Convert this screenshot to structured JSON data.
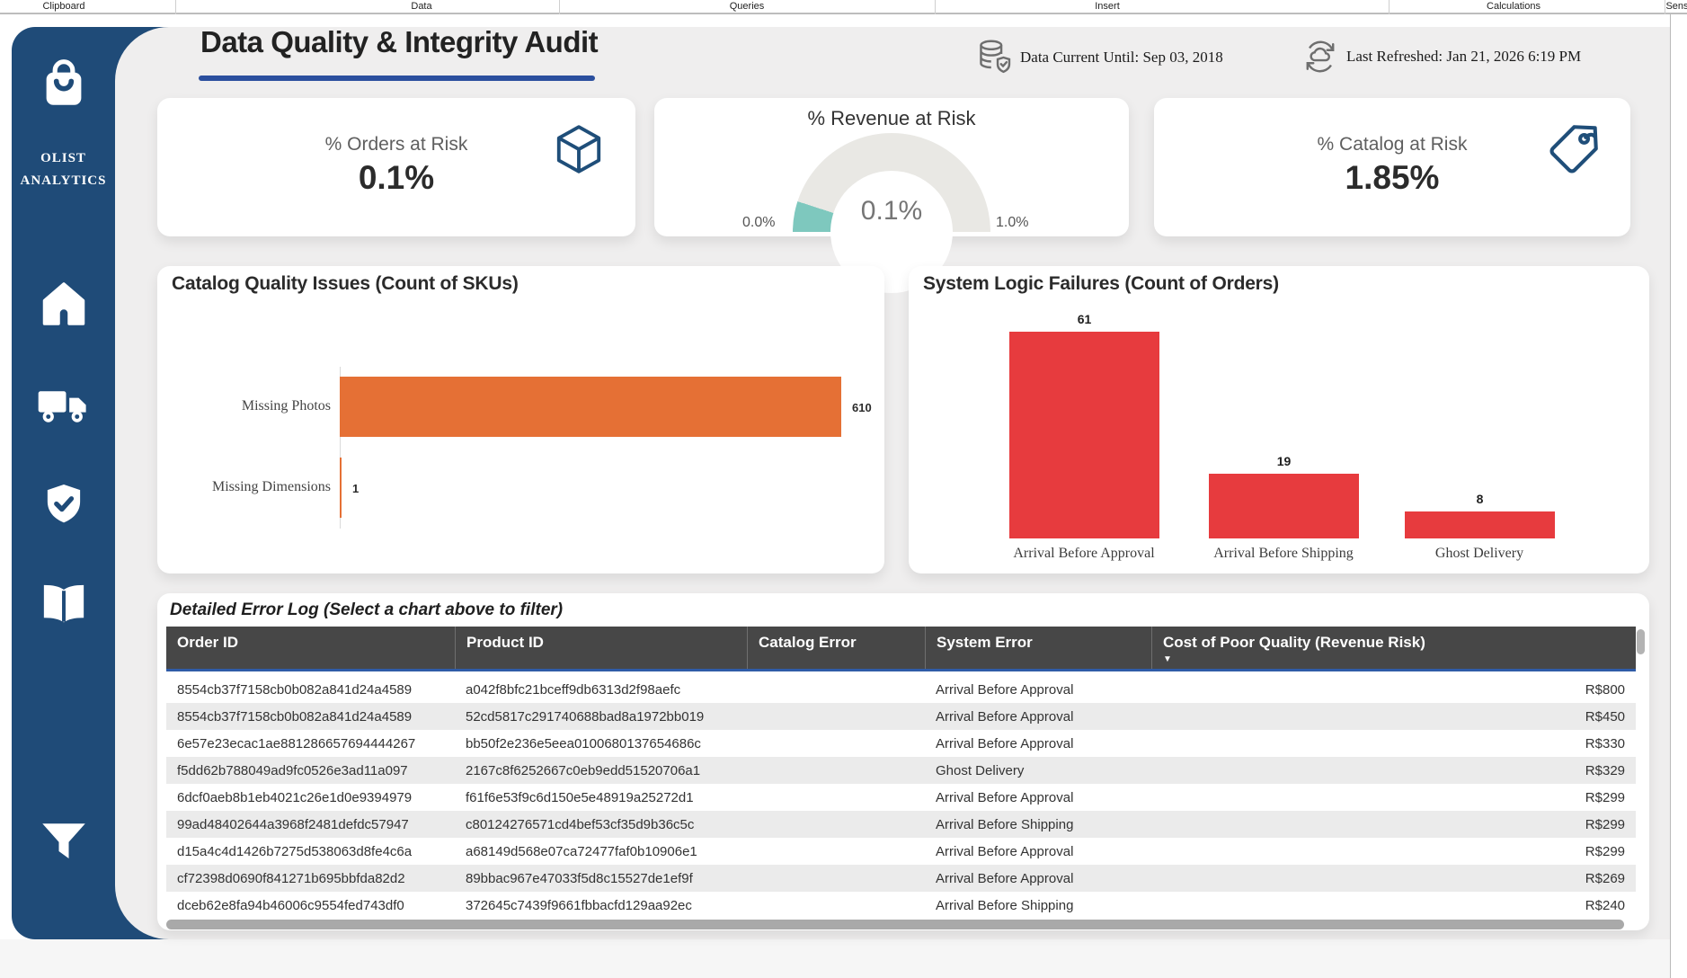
{
  "ribbon": {
    "tabs": [
      {
        "label": "Clipboard"
      },
      {
        "label": "Data"
      },
      {
        "label": "Queries"
      },
      {
        "label": "Insert"
      },
      {
        "label": "Calculations"
      },
      {
        "label": "Sens"
      }
    ]
  },
  "sidebar": {
    "brand_line1": "OLIST",
    "brand_line2": "ANALYTICS",
    "icons": [
      "shopping-bag",
      "home",
      "truck",
      "shield-check",
      "book-open",
      "filter-funnel"
    ]
  },
  "header": {
    "title": "Data Quality & Integrity Audit",
    "data_current": "Data Current Until: Sep 03, 2018",
    "last_refreshed": "Last Refreshed: Jan 21, 2026 6:19 PM"
  },
  "kpis": {
    "orders": {
      "label": "% Orders at Risk",
      "value": "0.1%"
    },
    "catalog": {
      "label": "% Catalog at Risk",
      "value": "1.85%"
    }
  },
  "colors": {
    "navy": "#1F4B78",
    "accent_blue": "#2B4F9E",
    "orange": "#E57035",
    "red": "#E73B3E",
    "teal": "#7EC8BE",
    "gauge_track": "#E9E8E4",
    "table_header": "#474747"
  },
  "chart_data": [
    {
      "type": "gauge",
      "title": "% Revenue at Risk",
      "value": 0.1,
      "min": 0.0,
      "max": 1.0,
      "min_label": "0.0%",
      "value_label": "0.1%",
      "max_label": "1.0%",
      "fill_color": "#7EC8BE",
      "track_color": "#E9E8E4"
    },
    {
      "type": "bar",
      "orientation": "horizontal",
      "title": "Catalog Quality Issues (Count of SKUs)",
      "categories": [
        "Missing Photos",
        "Missing Dimensions"
      ],
      "values": [
        610,
        1
      ],
      "bar_color": "#E57035",
      "xlim": [
        0,
        660
      ],
      "grid": false
    },
    {
      "type": "bar",
      "orientation": "vertical",
      "title": "System Logic Failures (Count of Orders)",
      "categories": [
        "Arrival Before Approval",
        "Arrival Before Shipping",
        "Ghost Delivery"
      ],
      "values": [
        61,
        19,
        8
      ],
      "bar_color": "#E73B3E",
      "ylim": [
        0,
        65
      ],
      "grid": false
    }
  ],
  "table": {
    "title": "Detailed Error Log (Select a chart above to filter)",
    "columns": [
      "Order ID",
      "Product ID",
      "Catalog Error",
      "System Error",
      "Cost of Poor Quality (Revenue Risk)"
    ],
    "sorted_column": "Cost of Poor Quality (Revenue Risk)",
    "sort_direction": "desc",
    "rows": [
      {
        "order_id": "8554cb37f7158cb0b082a841d24a4589",
        "product_id": "a042f8bfc21bceff9db6313d2f98aefc",
        "catalog_error": "",
        "system_error": "Arrival Before Approval",
        "cost": "R$800"
      },
      {
        "order_id": "8554cb37f7158cb0b082a841d24a4589",
        "product_id": "52cd5817c291740688bad8a1972bb019",
        "catalog_error": "",
        "system_error": "Arrival Before Approval",
        "cost": "R$450"
      },
      {
        "order_id": "6e57e23ecac1ae881286657694444267",
        "product_id": "bb50f2e236e5eea0100680137654686c",
        "catalog_error": "",
        "system_error": "Arrival Before Approval",
        "cost": "R$330"
      },
      {
        "order_id": "f5dd62b788049ad9fc0526e3ad11a097",
        "product_id": "2167c8f6252667c0eb9edd51520706a1",
        "catalog_error": "",
        "system_error": "Ghost Delivery",
        "cost": "R$329"
      },
      {
        "order_id": "6dcf0aeb8b1eb4021c26e1d0e9394979",
        "product_id": "f61f6e53f9c6d150e5e48919a25272d1",
        "catalog_error": "",
        "system_error": "Arrival Before Approval",
        "cost": "R$299"
      },
      {
        "order_id": "99ad48402644a3968f2481defdc57947",
        "product_id": "c80124276571cd4bef53cf35d9b36c5c",
        "catalog_error": "",
        "system_error": "Arrival Before Shipping",
        "cost": "R$299"
      },
      {
        "order_id": "d15a4c4d1426b7275d538063d8fe4c6a",
        "product_id": "a68149d568e07ca72477faf0b10906e1",
        "catalog_error": "",
        "system_error": "Arrival Before Approval",
        "cost": "R$299"
      },
      {
        "order_id": "cf72398d0690f841271b695bbfda82d2",
        "product_id": "89bbac967e47033f5d8c15527de1ef9f",
        "catalog_error": "",
        "system_error": "Arrival Before Approval",
        "cost": "R$269"
      },
      {
        "order_id": "dceb62e8fa94b46006c9554fed743df0",
        "product_id": "372645c7439f9661fbbacfd129aa92ec",
        "catalog_error": "",
        "system_error": "Arrival Before Shipping",
        "cost": "R$240"
      }
    ]
  }
}
